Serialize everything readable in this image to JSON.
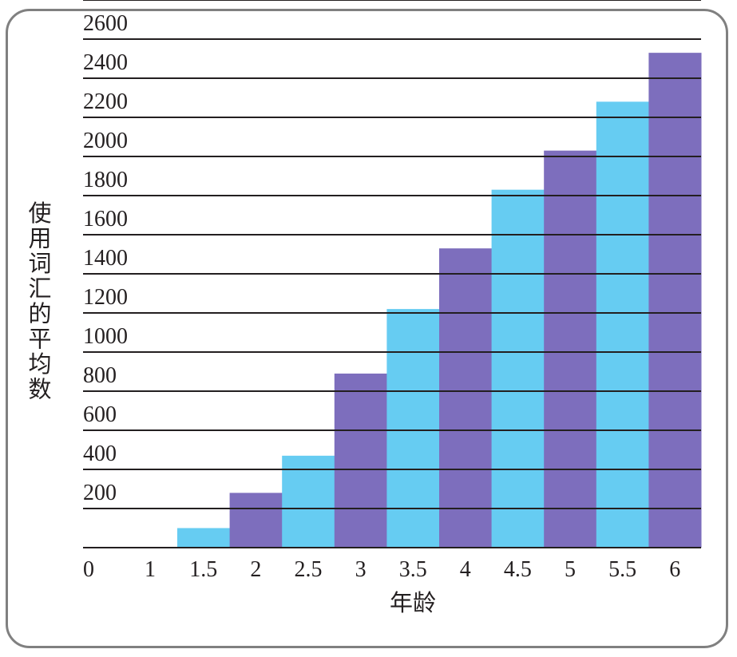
{
  "chart_data": {
    "type": "bar",
    "title": "",
    "xlabel": "年龄",
    "ylabel": "使用词汇的平均数",
    "categories": [
      "1.5",
      "2",
      "2.5",
      "3",
      "3.5",
      "4",
      "4.5",
      "5",
      "5.5",
      "6"
    ],
    "values": [
      100,
      280,
      470,
      890,
      1220,
      1530,
      1830,
      2030,
      2280,
      2530
    ],
    "x_ticks": [
      "0",
      "1",
      "1.5",
      "2",
      "2.5",
      "3",
      "3.5",
      "4",
      "4.5",
      "5",
      "5.5",
      "6"
    ],
    "y_ticks": [
      "200",
      "400",
      "600",
      "800",
      "1000",
      "1200",
      "1400",
      "1600",
      "1800",
      "2000",
      "2200",
      "2400",
      "2600"
    ],
    "ylim": [
      0,
      2600
    ],
    "grid": true,
    "colors": {
      "cyan": "#66ccf2",
      "purple": "#7d6ebd",
      "line": "#231f20"
    }
  }
}
